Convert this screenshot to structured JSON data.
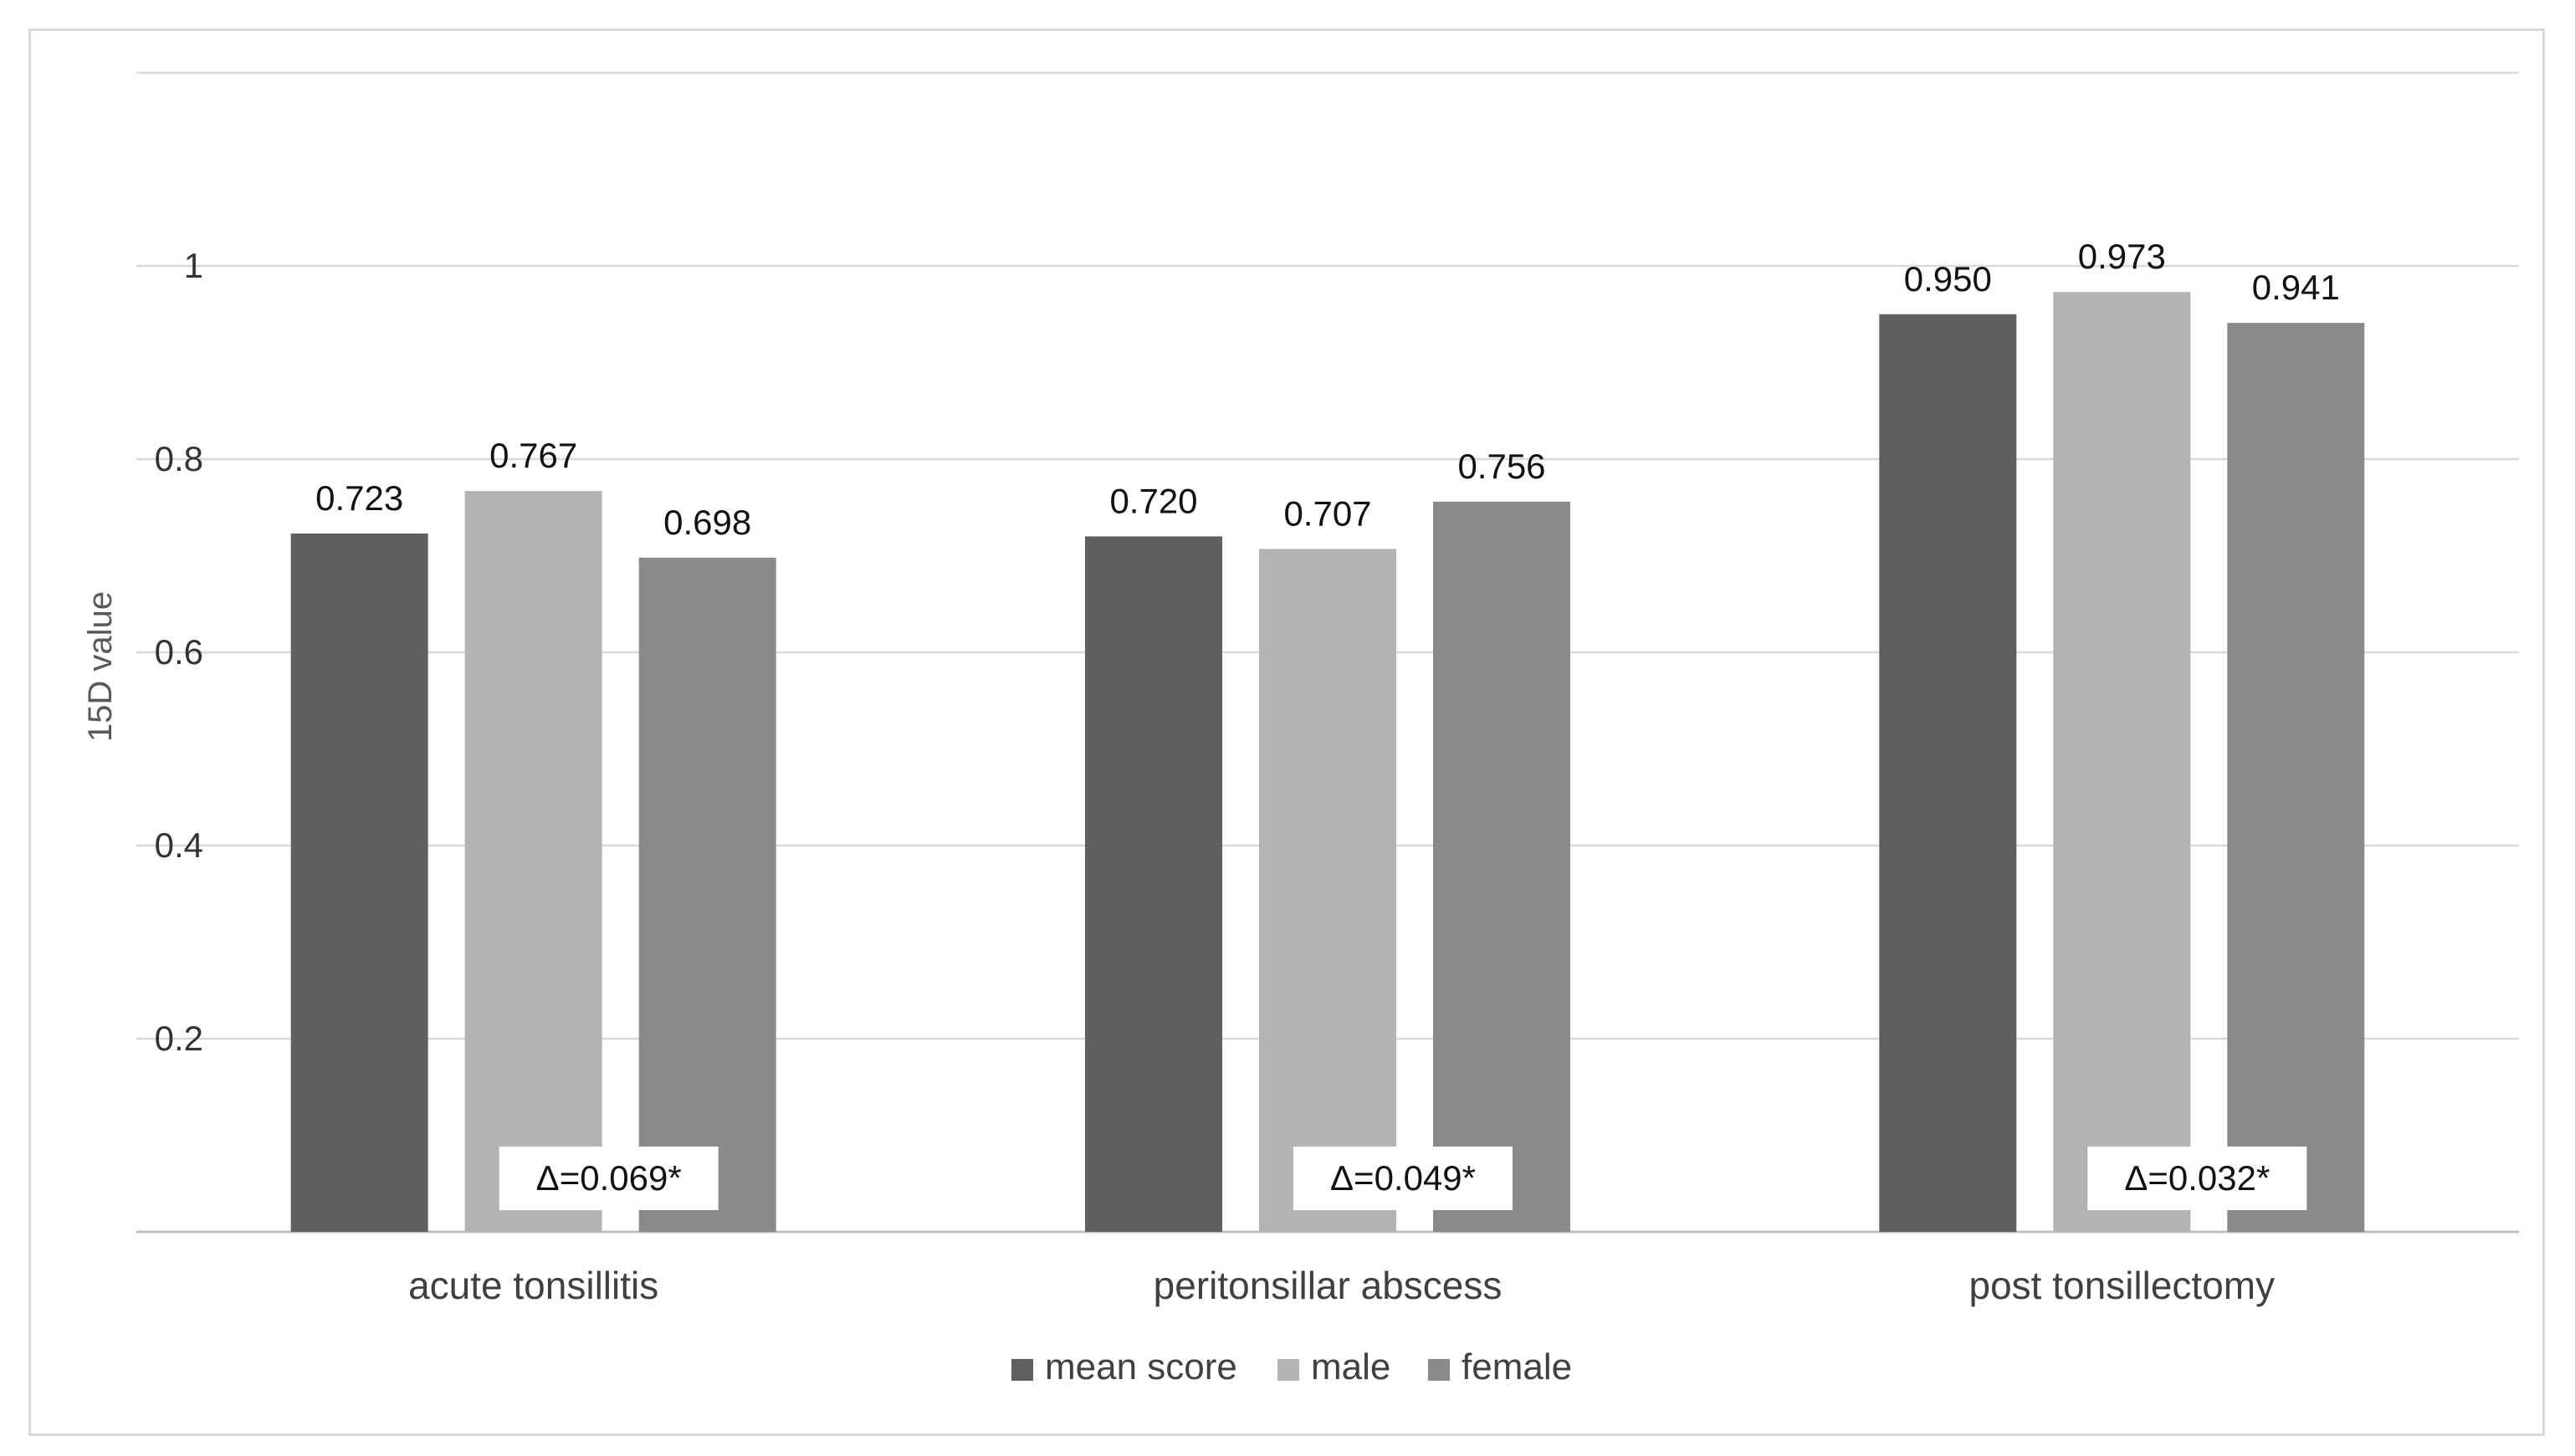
{
  "chart_data": {
    "type": "bar",
    "ylabel": "15D value",
    "xlabel": "",
    "title": "",
    "ylim": [
      0,
      1.2
    ],
    "yticks": [
      0.2,
      0.4,
      0.6,
      0.8,
      1
    ],
    "ytick_labels": [
      "0.2",
      "0.4",
      "0.6",
      "0.8",
      "1"
    ],
    "grid": true,
    "legend_position": "bottom",
    "categories": [
      "acute tonsillitis",
      "peritonsillar abscess",
      "post tonsillectomy"
    ],
    "series": [
      {
        "name": "mean score",
        "color": "#5f5f5f",
        "values": [
          0.723,
          0.72,
          0.95
        ],
        "labels": [
          "0.723",
          "0.720",
          "0.950"
        ]
      },
      {
        "name": "male",
        "color": "#b3b3b3",
        "values": [
          0.767,
          0.707,
          0.973
        ],
        "labels": [
          "0.767",
          "0.707",
          "0.973"
        ]
      },
      {
        "name": "female",
        "color": "#8a8a8a",
        "values": [
          0.698,
          0.756,
          0.941
        ],
        "labels": [
          "0.698",
          "0.756",
          "0.941"
        ]
      }
    ],
    "annotations": [
      "Δ=0.069*",
      "Δ=0.049*",
      "Δ=0.032*"
    ]
  }
}
